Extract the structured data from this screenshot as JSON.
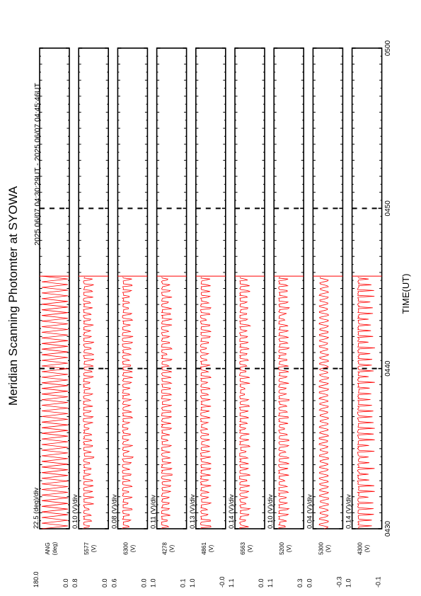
{
  "title": "Meridian Scanning Photomter at SYOWA",
  "time_range": "2025 06/07 04:30:29UT - 2025 06/07 04:45:46UT",
  "xlabel": "TIME(UT)",
  "x_ticks": [
    "0430",
    "0440",
    "0450",
    "0500"
  ],
  "trace_color": "#ff0000",
  "chart_data": {
    "type": "line",
    "x_range": [
      "04:30",
      "05:00"
    ],
    "data_end": "04:45:46",
    "grid": false,
    "panels": [
      {
        "channel": "ANG",
        "unit": "(deg)",
        "scale": "22.5 (deg)/div",
        "ylim": [
          0.0,
          180.0
        ],
        "tick_top": "180.0",
        "tick_bottom": "0.0",
        "pattern": "angle"
      },
      {
        "channel": "5577",
        "unit": "(V)",
        "scale": "0.10 (V)/div",
        "ylim": [
          0.0,
          0.8
        ],
        "tick_top": "0.8",
        "tick_bottom": "0.0",
        "pattern": "scan"
      },
      {
        "channel": "6300",
        "unit": "(V)",
        "scale": "0.08 (V)/div",
        "ylim": [
          0.0,
          0.6
        ],
        "tick_top": "0.6",
        "tick_bottom": "0.0",
        "pattern": "scan"
      },
      {
        "channel": "4278",
        "unit": "(V)",
        "scale": "0.11 (V)/div",
        "ylim": [
          0.1,
          1.0
        ],
        "tick_top": "1.0",
        "tick_bottom": "0.1",
        "pattern": "scan"
      },
      {
        "channel": "4861",
        "unit": "(V)",
        "scale": "0.13 (V)/div",
        "ylim": [
          0.0,
          1.0
        ],
        "tick_top": "1.0",
        "tick_bottom": "-0.0",
        "pattern": "scan"
      },
      {
        "channel": "6563",
        "unit": "(V)",
        "scale": "0.14 (V)/div",
        "ylim": [
          0.0,
          1.1
        ],
        "tick_top": "1.1",
        "tick_bottom": "0.0",
        "pattern": "scan"
      },
      {
        "channel": "5200",
        "unit": "(V)",
        "scale": "0.10 (V)/div",
        "ylim": [
          0.3,
          1.1
        ],
        "tick_top": "1.1",
        "tick_bottom": "0.3",
        "pattern": "scan"
      },
      {
        "channel": "5300",
        "unit": "(V)",
        "scale": "0.04 (V)/div",
        "ylim": [
          -0.3,
          0.0
        ],
        "tick_top": "0.0",
        "tick_bottom": "-0.3",
        "pattern": "wave"
      },
      {
        "channel": "4300",
        "unit": "(V)",
        "scale": "0.14 (V)/div",
        "ylim": [
          -0.1,
          1.0
        ],
        "tick_top": "1.0",
        "tick_bottom": "-0.1",
        "pattern": "spike"
      }
    ]
  }
}
